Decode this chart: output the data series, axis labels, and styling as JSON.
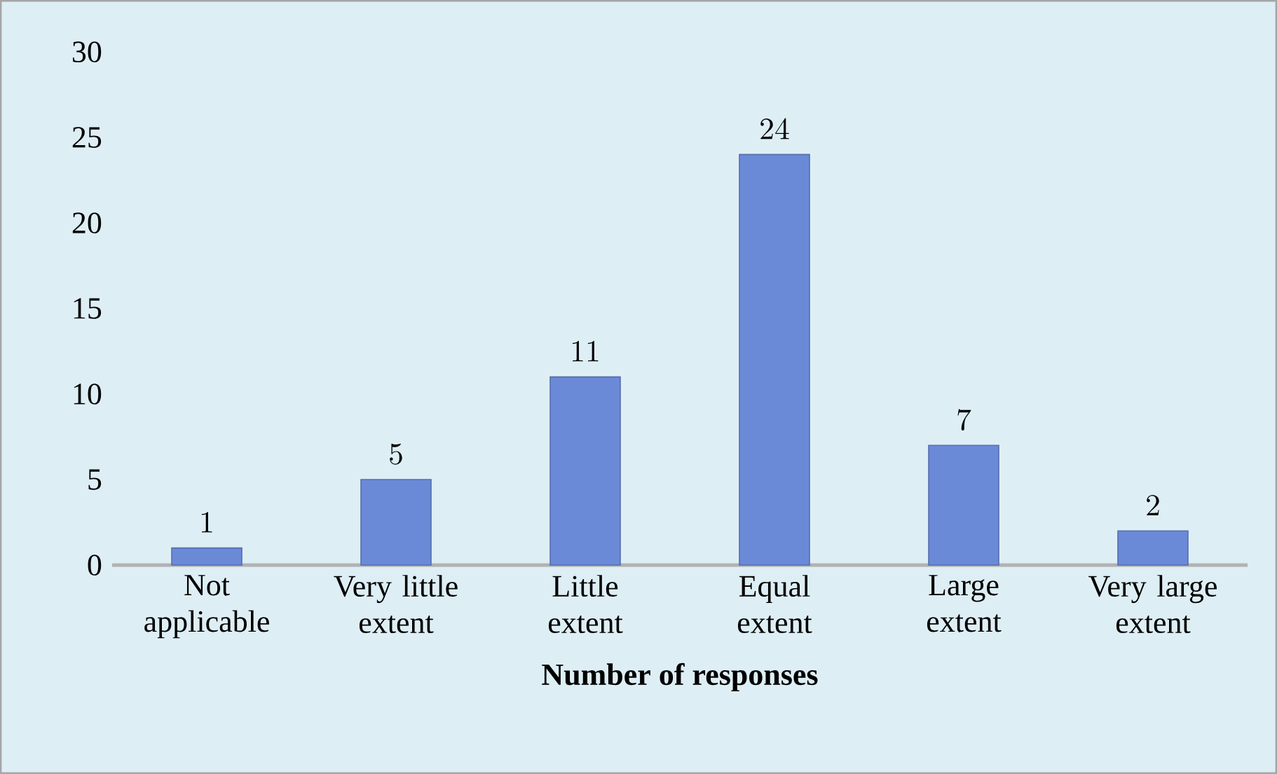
{
  "chart_data": {
    "type": "bar",
    "categories": [
      "Not applicable",
      "Very little extent",
      "Little extent",
      "Equal extent",
      "Large extent",
      "Very large extent"
    ],
    "values": [
      1,
      5,
      11,
      24,
      7,
      2
    ],
    "color": "#6a8ad8",
    "xlabel": "Number of responses",
    "ylim": [
      0,
      30
    ],
    "yticks": [
      0,
      5,
      10,
      15,
      20,
      25,
      30
    ],
    "data_labels": true
  }
}
